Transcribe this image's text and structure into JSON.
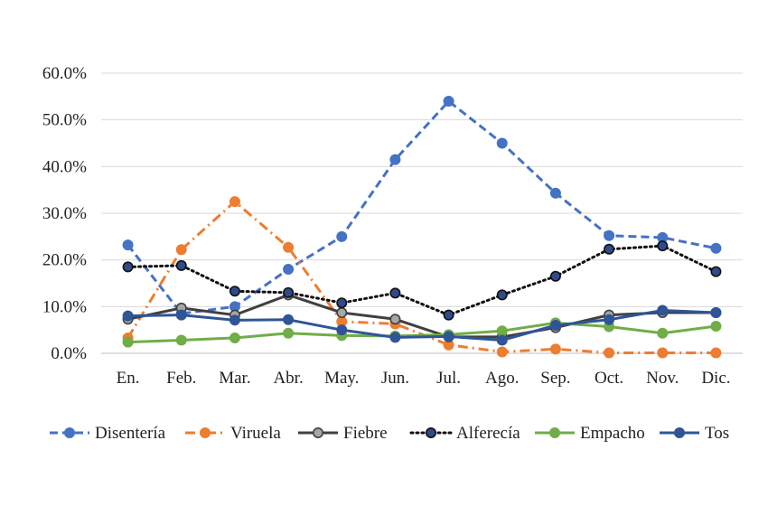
{
  "chart_data": {
    "type": "line",
    "categories": [
      "En.",
      "Feb.",
      "Mar.",
      "Abr.",
      "May.",
      "Jun.",
      "Jul.",
      "Ago.",
      "Sep.",
      "Oct.",
      "Nov.",
      "Dic."
    ],
    "ylim": [
      0,
      60
    ],
    "yticks": [
      0,
      10,
      20,
      30,
      40,
      50,
      60
    ],
    "ytick_labels": [
      "0.0%",
      "10.0%",
      "20.0%",
      "30.0%",
      "40.0%",
      "50.0%",
      "60.0%"
    ],
    "grid": true,
    "legend": "bottom",
    "series": [
      {
        "name": "Disentería",
        "color": "#4472c4",
        "dash": "dashed",
        "marker": "#4472c4",
        "values": [
          23.2,
          8.5,
          10.0,
          18.0,
          25.0,
          41.5,
          54.0,
          45.0,
          34.3,
          25.2,
          24.8,
          22.5
        ]
      },
      {
        "name": "Viruela",
        "color": "#ed7d31",
        "dash": "dashdot",
        "marker": "#ed7d31",
        "values": [
          3.3,
          22.2,
          32.5,
          22.7,
          6.8,
          6.3,
          1.8,
          0.3,
          0.9,
          0.1,
          0.1,
          0.1
        ]
      },
      {
        "name": "Fiebre",
        "color": "#404040",
        "dash": "solid",
        "marker": "#a6a6a6",
        "values": [
          7.3,
          9.7,
          8.2,
          12.5,
          8.7,
          7.3,
          3.5,
          3.5,
          5.5,
          8.2,
          8.7,
          8.7
        ]
      },
      {
        "name": "Alferecía",
        "color": "#111111",
        "dash": "dotted",
        "marker": "#2f4b8a",
        "values": [
          18.5,
          18.8,
          13.3,
          13.0,
          10.8,
          12.9,
          8.2,
          12.5,
          16.5,
          22.3,
          23.0,
          17.5
        ]
      },
      {
        "name": "Empacho",
        "color": "#70ad47",
        "dash": "solid",
        "marker": "#70ad47",
        "values": [
          2.4,
          2.8,
          3.3,
          4.3,
          3.8,
          3.7,
          4.0,
          4.8,
          6.5,
          5.7,
          4.3,
          5.8
        ]
      },
      {
        "name": "Tos",
        "color": "#2f5597",
        "dash": "solid",
        "marker": "#2f5597",
        "values": [
          8.0,
          8.2,
          7.1,
          7.2,
          5.0,
          3.4,
          3.6,
          2.8,
          6.0,
          7.2,
          9.2,
          8.7
        ]
      }
    ]
  }
}
